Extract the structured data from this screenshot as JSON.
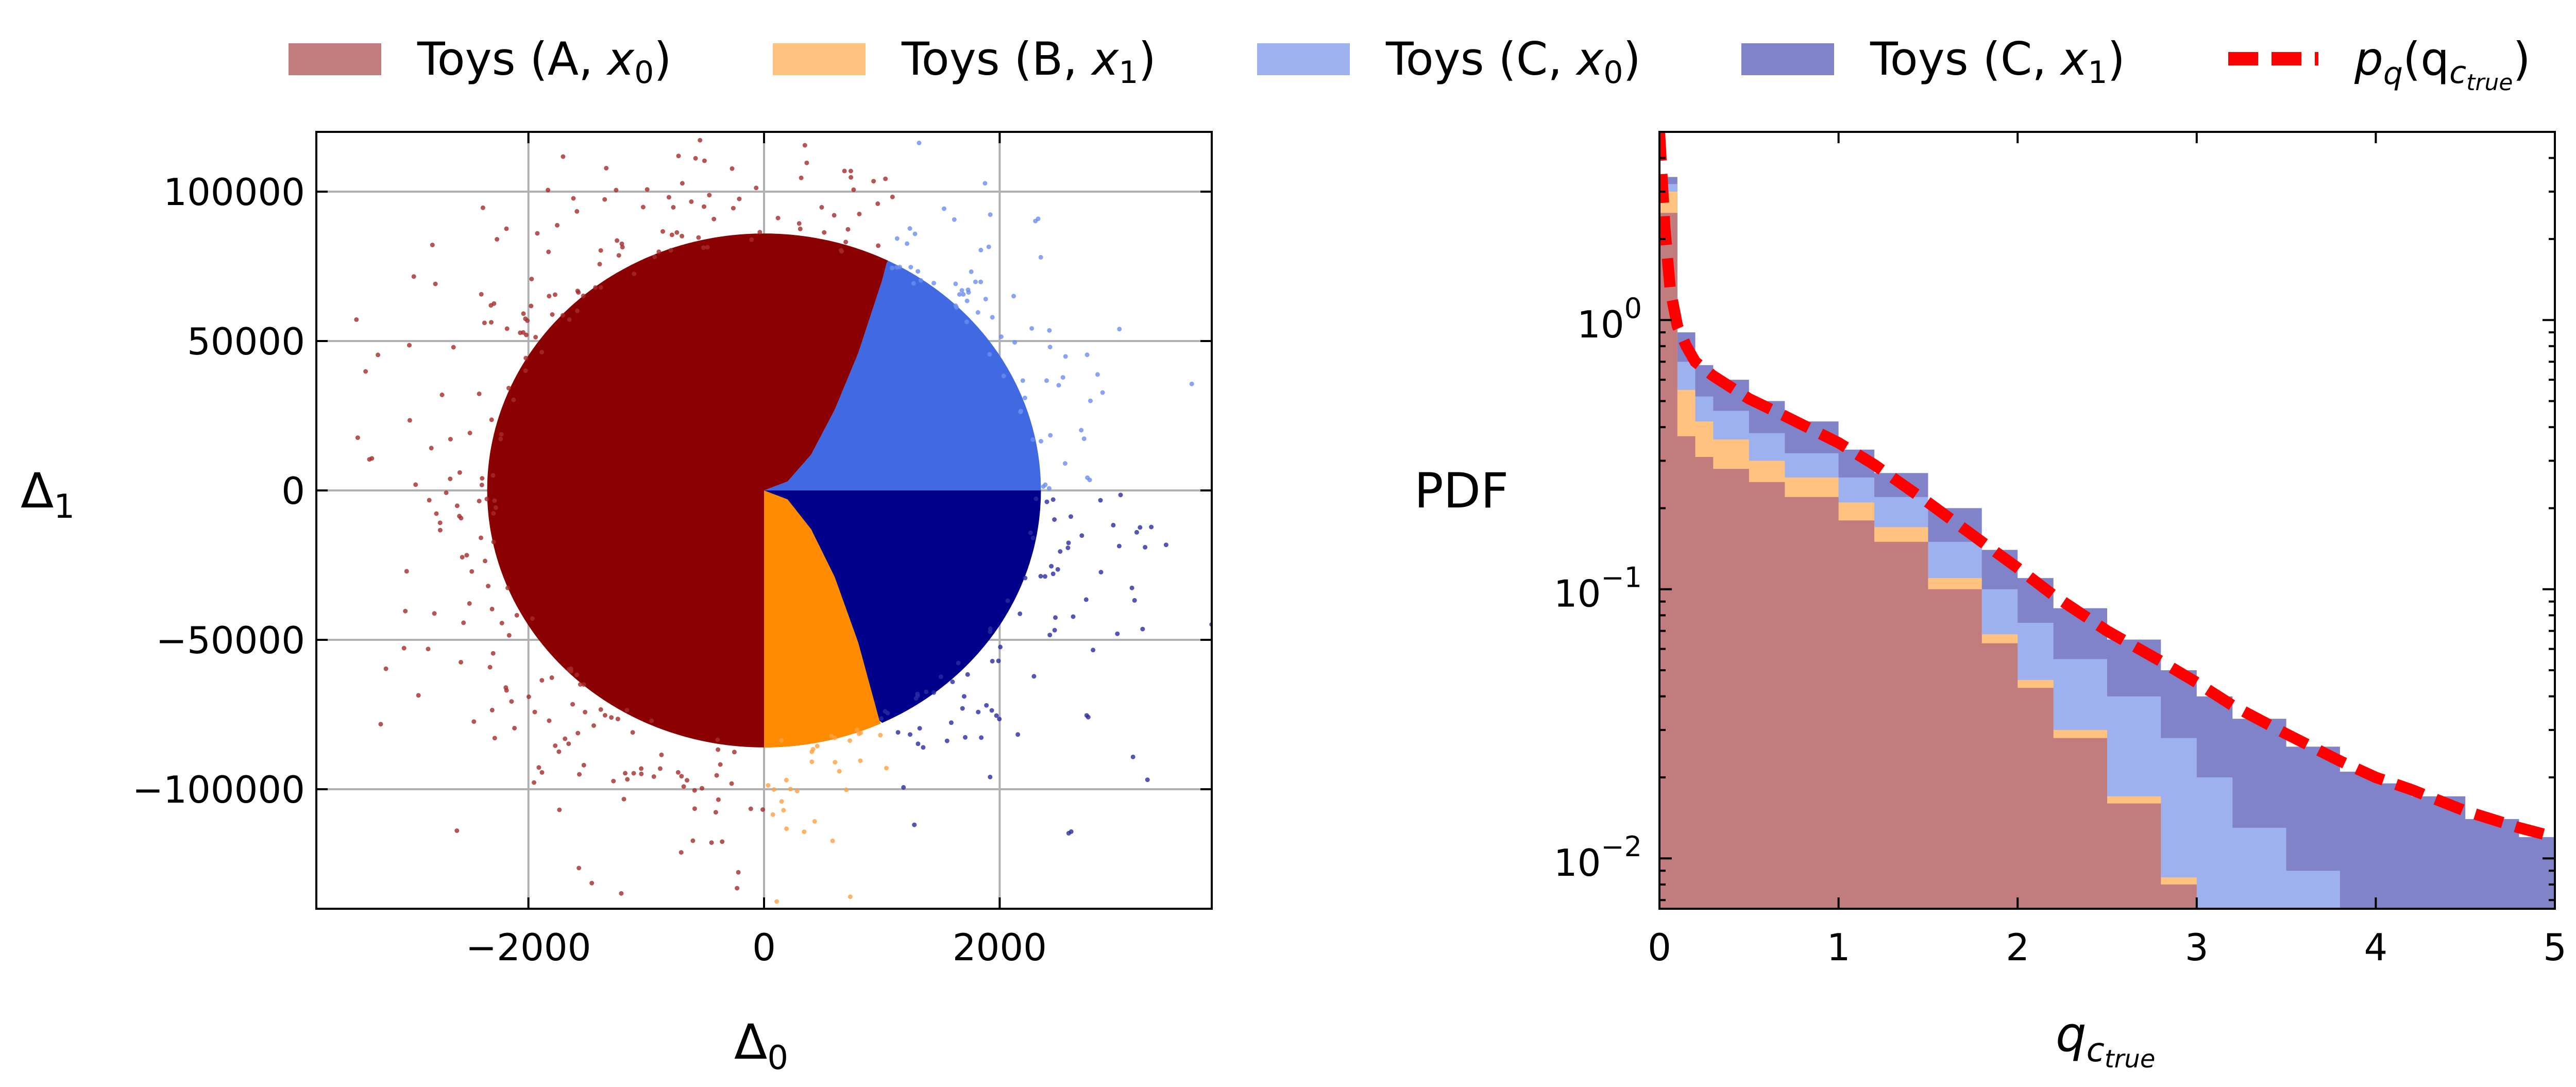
{
  "legend": {
    "items": [
      {
        "label_prefix": "Toys (A, ",
        "label_var": "x",
        "label_sub": "0",
        "label_suffix": ")",
        "color": "#c17d7d",
        "kind": "patch"
      },
      {
        "label_prefix": "Toys (B, ",
        "label_var": "x",
        "label_sub": "1",
        "label_suffix": ")",
        "color": "#ffc27f",
        "kind": "patch"
      },
      {
        "label_prefix": "Toys (C, ",
        "label_var": "x",
        "label_sub": "0",
        "label_suffix": ")",
        "color": "#9eb1ef",
        "kind": "patch"
      },
      {
        "label_prefix": "Toys (C, ",
        "label_var": "x",
        "label_sub": "1",
        "label_suffix": ")",
        "color": "#8083c7",
        "kind": "patch"
      },
      {
        "label_var": "p",
        "label_sub": "q",
        "label_open": "(q",
        "label_sub2": "c",
        "label_sub3": "true",
        "label_close": ")",
        "color": "#ff0000",
        "kind": "dashed-line"
      }
    ]
  },
  "chart_data": [
    {
      "type": "scatter",
      "xlabel_symbol": "Δ",
      "xlabel_sub": "0",
      "ylabel_symbol": "Δ",
      "ylabel_sub": "1",
      "xlim": [
        -3800,
        3800
      ],
      "ylim": [
        -140000,
        120000
      ],
      "xticks": [
        -2000,
        0,
        2000
      ],
      "xtick_labels": [
        "−2000",
        "0",
        "2000"
      ],
      "yticks": [
        100000,
        50000,
        0,
        -50000,
        -100000
      ],
      "ytick_labels": [
        "100000",
        "50000",
        "0",
        "−50000",
        "−100000"
      ],
      "grid": true,
      "cloud": {
        "sigma_x": 1000,
        "sigma_y": 40000,
        "n_points": 2600
      },
      "boundary_B_C": {
        "delta0": [
          0,
          200,
          400,
          600,
          800,
          1000,
          1200
        ],
        "delta1": [
          0,
          -3000,
          -13000,
          -29000,
          -51000,
          -80000,
          -115000
        ]
      },
      "boundary_A_C": {
        "delta0": [
          0,
          200,
          400,
          600,
          800,
          1000,
          1200
        ],
        "delta1": [
          0,
          3000,
          12000,
          27000,
          46000,
          70000,
          100000
        ]
      },
      "series": [
        {
          "name": "Toys (A, x0)",
          "region": "Δ0 < 0",
          "color": "#8b0000",
          "edge_color": "#a52a2a"
        },
        {
          "name": "Toys (B, x1)",
          "region": "Δ0 > 0, Δ1 below B/C boundary",
          "color": "#ff8c00",
          "edge_color": "#ffa040"
        },
        {
          "name": "Toys (C, x0)",
          "region": "Δ0 > 0, Δ1 > 0 beyond A/C boundary",
          "color": "#4169e1",
          "edge_color": "#6a8df0"
        },
        {
          "name": "Toys (C, x1)",
          "region": "Δ0 > 0, Δ1 < 0 beyond B/C boundary",
          "color": "#00008b",
          "edge_color": "#2a2aa0"
        }
      ]
    },
    {
      "type": "area",
      "stacked": true,
      "yscale": "log",
      "ylabel": "PDF",
      "xlabel_symbol": "q",
      "xlabel_sub": "c",
      "xlabel_sub2": "true",
      "xlim": [
        0,
        5
      ],
      "ylim": [
        0.0065,
        5.0
      ],
      "xticks": [
        0,
        1,
        2,
        3,
        4,
        5
      ],
      "xtick_labels": [
        "0",
        "1",
        "2",
        "3",
        "4",
        "5"
      ],
      "yticks": [
        1,
        0.1,
        0.01
      ],
      "ytick_bases": [
        "10",
        "10",
        "10"
      ],
      "ytick_exps": [
        "0",
        "−1",
        "−2"
      ],
      "x": [
        0.0,
        0.1,
        0.2,
        0.3,
        0.5,
        0.7,
        1.0,
        1.2,
        1.5,
        1.8,
        2.0,
        2.2,
        2.5,
        2.8,
        3.0,
        3.2,
        3.5,
        3.8,
        4.0,
        4.2,
        4.5,
        4.8,
        5.0
      ],
      "series": [
        {
          "name": "Toys (A, x0)",
          "color": "#c17d7d",
          "cumulative": [
            2.5,
            0.37,
            0.31,
            0.28,
            0.25,
            0.22,
            0.18,
            0.15,
            0.1,
            0.063,
            0.043,
            0.028,
            0.016,
            0.008,
            0.006,
            0.006,
            0.006,
            0.006,
            0.006,
            0.006,
            0.006,
            0.006,
            0.006
          ]
        },
        {
          "name": "Toys (B, x1)",
          "color": "#ffc27f",
          "cumulative": [
            3.0,
            0.55,
            0.42,
            0.36,
            0.3,
            0.26,
            0.21,
            0.17,
            0.11,
            0.068,
            0.046,
            0.03,
            0.017,
            0.0085,
            0.006,
            0.006,
            0.006,
            0.006,
            0.006,
            0.006,
            0.006,
            0.006,
            0.006
          ]
        },
        {
          "name": "Toys (C, x0)",
          "color": "#9eb1ef",
          "cumulative": [
            3.2,
            0.7,
            0.52,
            0.46,
            0.38,
            0.32,
            0.26,
            0.22,
            0.15,
            0.1,
            0.075,
            0.055,
            0.04,
            0.028,
            0.02,
            0.013,
            0.009,
            0.006,
            0.006,
            0.006,
            0.006,
            0.006,
            0.006
          ]
        },
        {
          "name": "Toys (C, x1)",
          "color": "#8083c7",
          "cumulative": [
            3.4,
            0.9,
            0.68,
            0.6,
            0.5,
            0.42,
            0.33,
            0.27,
            0.2,
            0.14,
            0.11,
            0.085,
            0.065,
            0.05,
            0.04,
            0.033,
            0.026,
            0.021,
            0.019,
            0.017,
            0.014,
            0.012,
            0.011
          ]
        }
      ],
      "pdf_curve": {
        "name": "p_q(q_c_true)",
        "color": "#ff0000",
        "x": [
          0.0,
          0.03,
          0.06,
          0.1,
          0.15,
          0.2,
          0.3,
          0.5,
          0.7,
          1.0,
          1.2,
          1.5,
          1.8,
          2.0,
          2.2,
          2.5,
          2.8,
          3.0,
          3.2,
          3.5,
          3.8,
          4.0,
          4.2,
          4.5,
          4.8,
          5.0
        ],
        "y": [
          5.0,
          2.2,
          1.3,
          0.95,
          0.8,
          0.7,
          0.62,
          0.51,
          0.44,
          0.35,
          0.29,
          0.21,
          0.15,
          0.12,
          0.095,
          0.07,
          0.054,
          0.045,
          0.037,
          0.029,
          0.023,
          0.02,
          0.018,
          0.015,
          0.013,
          0.012
        ]
      }
    }
  ]
}
